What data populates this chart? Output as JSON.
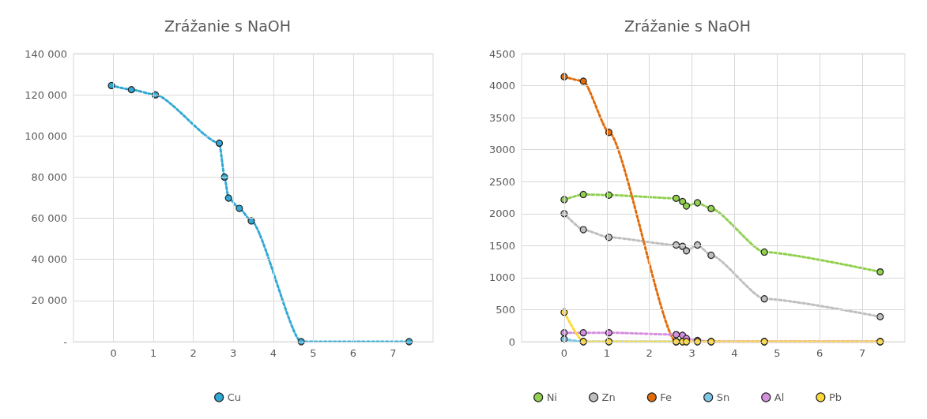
{
  "chart_data": [
    {
      "type": "line",
      "title": "Zrážanie s NaOH",
      "x": [
        -0.05,
        0.45,
        1.05,
        2.65,
        2.78,
        2.88,
        3.15,
        3.45,
        4.7,
        7.4
      ],
      "series": [
        {
          "name": "Cu",
          "color": "#31a9d4",
          "values": [
            124500,
            122500,
            120000,
            96500,
            80000,
            69800,
            64800,
            58700,
            0,
            0
          ]
        }
      ],
      "xlim": [
        -1,
        8
      ],
      "xticks": [
        0,
        1,
        2,
        3,
        4,
        5,
        6,
        7
      ],
      "ylim": [
        0,
        140000
      ],
      "yticks": [
        {
          "value": 0,
          "label": "-"
        },
        {
          "value": 20000,
          "label": "20 000"
        },
        {
          "value": 40000,
          "label": "40 000"
        },
        {
          "value": 60000,
          "label": "60 000"
        },
        {
          "value": 80000,
          "label": "80 000"
        },
        {
          "value": 100000,
          "label": "100 000"
        },
        {
          "value": 120000,
          "label": "120 000"
        },
        {
          "value": 140000,
          "label": "140 000"
        }
      ],
      "grid": true,
      "legend": "bottom",
      "marker": "circle",
      "line_style": "dotted"
    },
    {
      "type": "line",
      "title": "Zrážanie s NaOH",
      "x": [
        0,
        0.45,
        1.05,
        2.63,
        2.78,
        2.87,
        3.13,
        3.45,
        4.7,
        7.42
      ],
      "series": [
        {
          "name": "Ni",
          "color": "#92d050",
          "values": [
            2220,
            2300,
            2290,
            2240,
            2190,
            2120,
            2170,
            2080,
            1400,
            1090
          ]
        },
        {
          "name": "Zn",
          "color": "#bfbfbf",
          "values": [
            2000,
            1750,
            1630,
            1510,
            1490,
            1420,
            1510,
            1350,
            670,
            390
          ]
        },
        {
          "name": "Fe",
          "color": "#e36c0a",
          "values": [
            4140,
            4070,
            3270,
            0,
            0,
            0,
            0,
            0,
            0,
            0
          ]
        },
        {
          "name": "Sn",
          "color": "#7cc7e8",
          "values": [
            40,
            0,
            0,
            0,
            null,
            null,
            null,
            null,
            null,
            null
          ]
        },
        {
          "name": "Al",
          "color": "#d58fde",
          "values": [
            140,
            140,
            140,
            110,
            100,
            50,
            20,
            0,
            0,
            0
          ]
        },
        {
          "name": "Pb",
          "color": "#ffd939",
          "values": [
            460,
            0,
            0,
            0,
            0,
            0,
            0,
            0,
            0,
            0
          ]
        }
      ],
      "xlim": [
        -1,
        8
      ],
      "xticks": [
        0,
        1,
        2,
        3,
        4,
        5,
        6,
        7
      ],
      "ylim": [
        0,
        4500
      ],
      "yticks": [
        0,
        500,
        1000,
        1500,
        2000,
        2500,
        3000,
        3500,
        4000,
        4500
      ],
      "grid": true,
      "legend": "bottom",
      "marker": "circle",
      "line_style": "dotted"
    }
  ]
}
